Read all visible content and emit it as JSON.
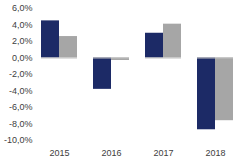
{
  "chart_data": {
    "type": "bar",
    "categories": [
      "2015",
      "2016",
      "2017",
      "2018"
    ],
    "series": [
      {
        "color": "#1c2a66",
        "values": [
          4.5,
          -3.8,
          3.0,
          -8.7
        ]
      },
      {
        "color": "#a6a6a6",
        "values": [
          2.6,
          -0.3,
          4.1,
          -7.6
        ]
      }
    ],
    "ylim": [
      -10,
      6
    ],
    "yticks": [
      {
        "value": 6,
        "label": "6,0%"
      },
      {
        "value": 4,
        "label": "4,0%"
      },
      {
        "value": 2,
        "label": "2,0%"
      },
      {
        "value": 0,
        "label": "0,0%"
      },
      {
        "value": -2,
        "label": "-2,0%"
      },
      {
        "value": -4,
        "label": "-4,0%"
      },
      {
        "value": -6,
        "label": "-6,0%"
      },
      {
        "value": -8,
        "label": "-8,0%"
      },
      {
        "value": -10,
        "label": "-10,0%"
      }
    ],
    "grid": false
  }
}
